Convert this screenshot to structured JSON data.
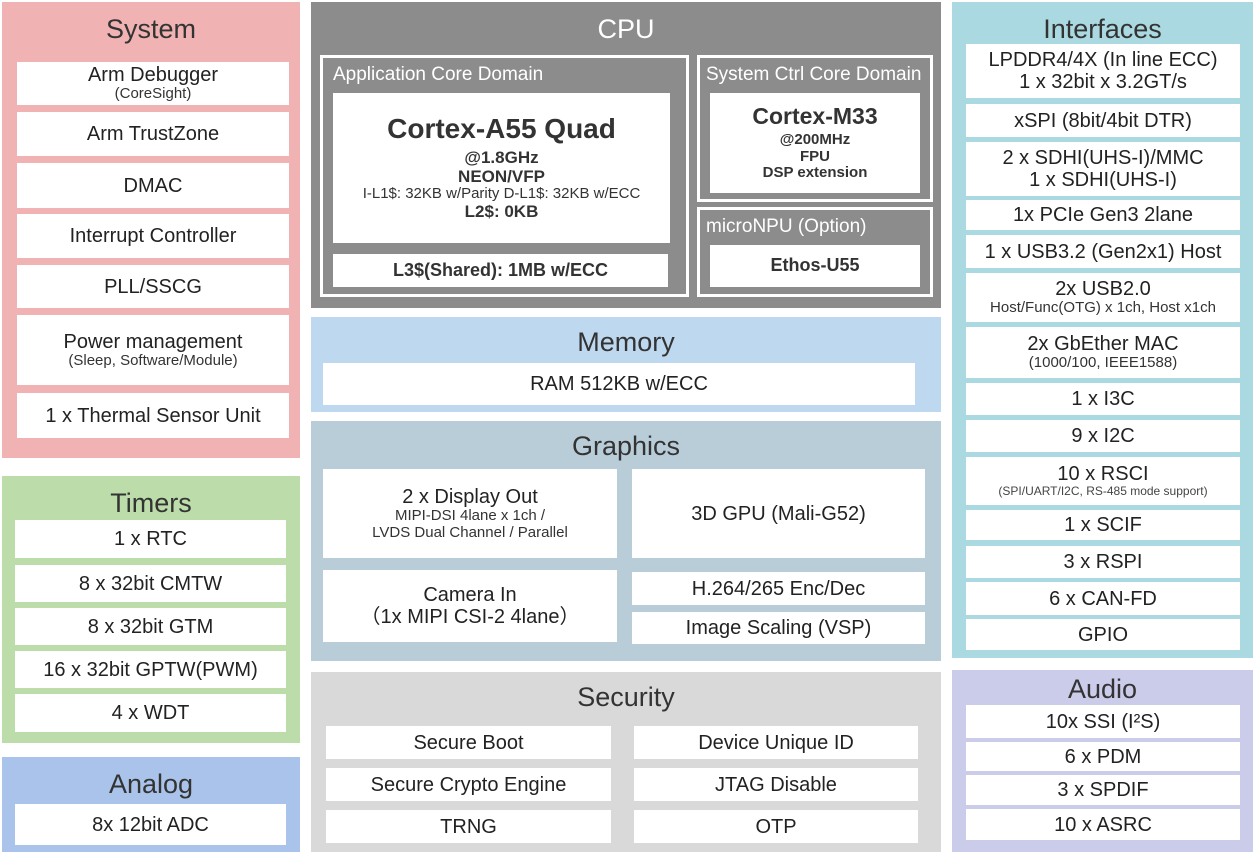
{
  "colors": {
    "system": "#f0b2b2",
    "timers": "#bcdcaa",
    "analog": "#a9c3ea",
    "cpu": "#8c8c8c",
    "memory": "#bed8f0",
    "graphics": "#b9cdd9",
    "security": "#d9d9d9",
    "interfaces": "#abd9e1",
    "audio": "#cbcbea"
  },
  "system": {
    "title": "System",
    "items": [
      {
        "label": "Arm Debugger",
        "sub": "(CoreSight)"
      },
      {
        "label": "Arm TrustZone"
      },
      {
        "label": "DMAC"
      },
      {
        "label": "Interrupt Controller"
      },
      {
        "label": "PLL/SSCG"
      },
      {
        "label": "Power management",
        "sub": "(Sleep, Software/Module)"
      },
      {
        "label": "1 x Thermal Sensor Unit"
      }
    ]
  },
  "timers": {
    "title": "Timers",
    "items": [
      {
        "label": "1 x RTC"
      },
      {
        "label": "8 x 32bit CMTW"
      },
      {
        "label": "8 x 32bit GTM"
      },
      {
        "label": "16 x 32bit GPTW(PWM)"
      },
      {
        "label": "4 x WDT"
      }
    ]
  },
  "analog": {
    "title": "Analog",
    "items": [
      {
        "label": "8x 12bit ADC"
      }
    ]
  },
  "cpu": {
    "title": "CPU",
    "app_domain": {
      "title": "Application Core Domain",
      "core": "Cortex-A55 Quad",
      "freq": "@1.8GHz",
      "ext": "NEON/VFP",
      "l1": "I-L1$: 32KB w/Parity  D-L1$: 32KB w/ECC",
      "l2": "L2$: 0KB",
      "l3": "L3$(Shared): 1MB w/ECC"
    },
    "sys_domain": {
      "title": "System Ctrl Core Domain",
      "core": "Cortex-M33",
      "freq": "@200MHz",
      "fpu": "FPU",
      "dsp": "DSP extension"
    },
    "npu": {
      "title": "microNPU (Option)",
      "core": "Ethos-U55"
    }
  },
  "memory": {
    "title": "Memory",
    "items": [
      {
        "label": "RAM 512KB w/ECC"
      }
    ]
  },
  "graphics": {
    "title": "Graphics",
    "items": [
      {
        "label": "2 x Display Out",
        "sub": "MIPI-DSI 4lane x 1ch /",
        "sub2": "LVDS Dual Channel / Parallel"
      },
      {
        "label": "3D GPU (Mali-G52)"
      },
      {
        "label": "Camera In",
        "label2": "（1x MIPI CSI-2 4lane）"
      },
      {
        "label": "H.264/265 Enc/Dec"
      },
      {
        "label": "Image Scaling (VSP)"
      }
    ]
  },
  "security": {
    "title": "Security",
    "items": [
      {
        "label": "Secure Boot"
      },
      {
        "label": "Device Unique ID"
      },
      {
        "label": "Secure Crypto Engine"
      },
      {
        "label": "JTAG Disable"
      },
      {
        "label": "TRNG"
      },
      {
        "label": "OTP"
      }
    ]
  },
  "interfaces": {
    "title": "Interfaces",
    "items": [
      {
        "label": "LPDDR4/4X (In line ECC)",
        "label2": "1 x 32bit x 3.2GT/s"
      },
      {
        "label": "xSPI (8bit/4bit DTR)"
      },
      {
        "label": "2 x SDHI(UHS-I)/MMC",
        "label2": "1 x SDHI(UHS-I)"
      },
      {
        "label": "1x PCIe Gen3 2lane"
      },
      {
        "label": "1 x USB3.2 (Gen2x1) Host"
      },
      {
        "label": "2x USB2.0",
        "sub": "Host/Func(OTG) x 1ch, Host x1ch"
      },
      {
        "label": "2x GbEther MAC",
        "sub": "(1000/100, IEEE1588)"
      },
      {
        "label": "1 x I3C"
      },
      {
        "label": "9 x I2C"
      },
      {
        "label": "10 x RSCI",
        "tiny": "(SPI/UART/I2C, RS-485 mode support)"
      },
      {
        "label": "1 x SCIF"
      },
      {
        "label": "3 x RSPI"
      },
      {
        "label": "6 x CAN-FD"
      },
      {
        "label": "GPIO"
      }
    ]
  },
  "audio": {
    "title": "Audio",
    "items": [
      {
        "label": "10x SSI (I²S)"
      },
      {
        "label": "6 x PDM"
      },
      {
        "label": "3 x SPDIF"
      },
      {
        "label": "10 x ASRC"
      }
    ]
  }
}
